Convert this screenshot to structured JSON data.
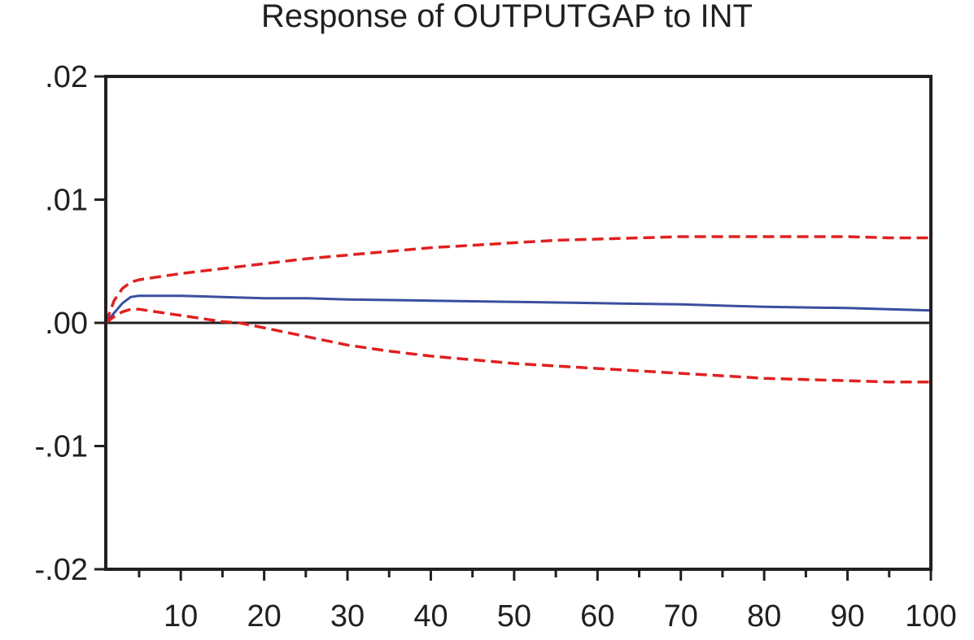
{
  "chart_data": {
    "type": "line",
    "title": "Response of OUTPUTGAP to INT",
    "xlabel": "",
    "ylabel": "",
    "xlim": [
      1,
      100
    ],
    "ylim": [
      -0.02,
      0.02
    ],
    "x_ticks": [
      10,
      20,
      30,
      40,
      50,
      60,
      70,
      80,
      90,
      100
    ],
    "x_tick_labels": [
      "10",
      "20",
      "30",
      "40",
      "50",
      "60",
      "70",
      "80",
      "90",
      "100"
    ],
    "y_ticks": [
      0.02,
      0.01,
      0.0,
      -0.01,
      -0.02
    ],
    "y_tick_labels": [
      ".02",
      ".01",
      ".00",
      "-.01",
      "-.02"
    ],
    "zero_line": true,
    "grid": false,
    "legend": "none",
    "series": [
      {
        "role": "response",
        "style": "solid",
        "color": "#3a4fa0",
        "x": [
          1,
          2,
          3,
          4,
          5,
          6,
          8,
          10,
          15,
          20,
          25,
          30,
          40,
          50,
          60,
          70,
          80,
          90,
          100
        ],
        "y": [
          0.0,
          0.0008,
          0.0016,
          0.0021,
          0.0022,
          0.0022,
          0.0022,
          0.0022,
          0.0021,
          0.002,
          0.002,
          0.0019,
          0.0018,
          0.0017,
          0.0016,
          0.0015,
          0.0013,
          0.0012,
          0.001
        ]
      },
      {
        "role": "upper-band",
        "style": "dashed",
        "color": "#e02020",
        "x": [
          1,
          2,
          3,
          4,
          5,
          6,
          8,
          10,
          15,
          20,
          25,
          30,
          35,
          40,
          45,
          50,
          55,
          60,
          65,
          70,
          75,
          80,
          85,
          90,
          95,
          100
        ],
        "y": [
          0.0,
          0.0018,
          0.0028,
          0.0033,
          0.0035,
          0.0036,
          0.0038,
          0.004,
          0.0044,
          0.0048,
          0.0052,
          0.0055,
          0.0058,
          0.0061,
          0.0063,
          0.0065,
          0.0067,
          0.0068,
          0.0069,
          0.007,
          0.007,
          0.007,
          0.007,
          0.007,
          0.0069,
          0.0069
        ]
      },
      {
        "role": "lower-band",
        "style": "dashed",
        "color": "#e02020",
        "x": [
          1,
          2,
          3,
          4,
          5,
          6,
          8,
          10,
          12,
          15,
          17,
          20,
          25,
          30,
          35,
          40,
          45,
          50,
          55,
          60,
          65,
          70,
          75,
          80,
          85,
          90,
          95,
          100
        ],
        "y": [
          0.0,
          0.0005,
          0.0009,
          0.0011,
          0.0011,
          0.001,
          0.0008,
          0.0006,
          0.0004,
          0.0001,
          0.0,
          -0.0004,
          -0.0011,
          -0.0018,
          -0.0023,
          -0.0027,
          -0.003,
          -0.0033,
          -0.0035,
          -0.0037,
          -0.0039,
          -0.0041,
          -0.0043,
          -0.0045,
          -0.0046,
          -0.0047,
          -0.0048,
          -0.0048
        ]
      }
    ]
  }
}
